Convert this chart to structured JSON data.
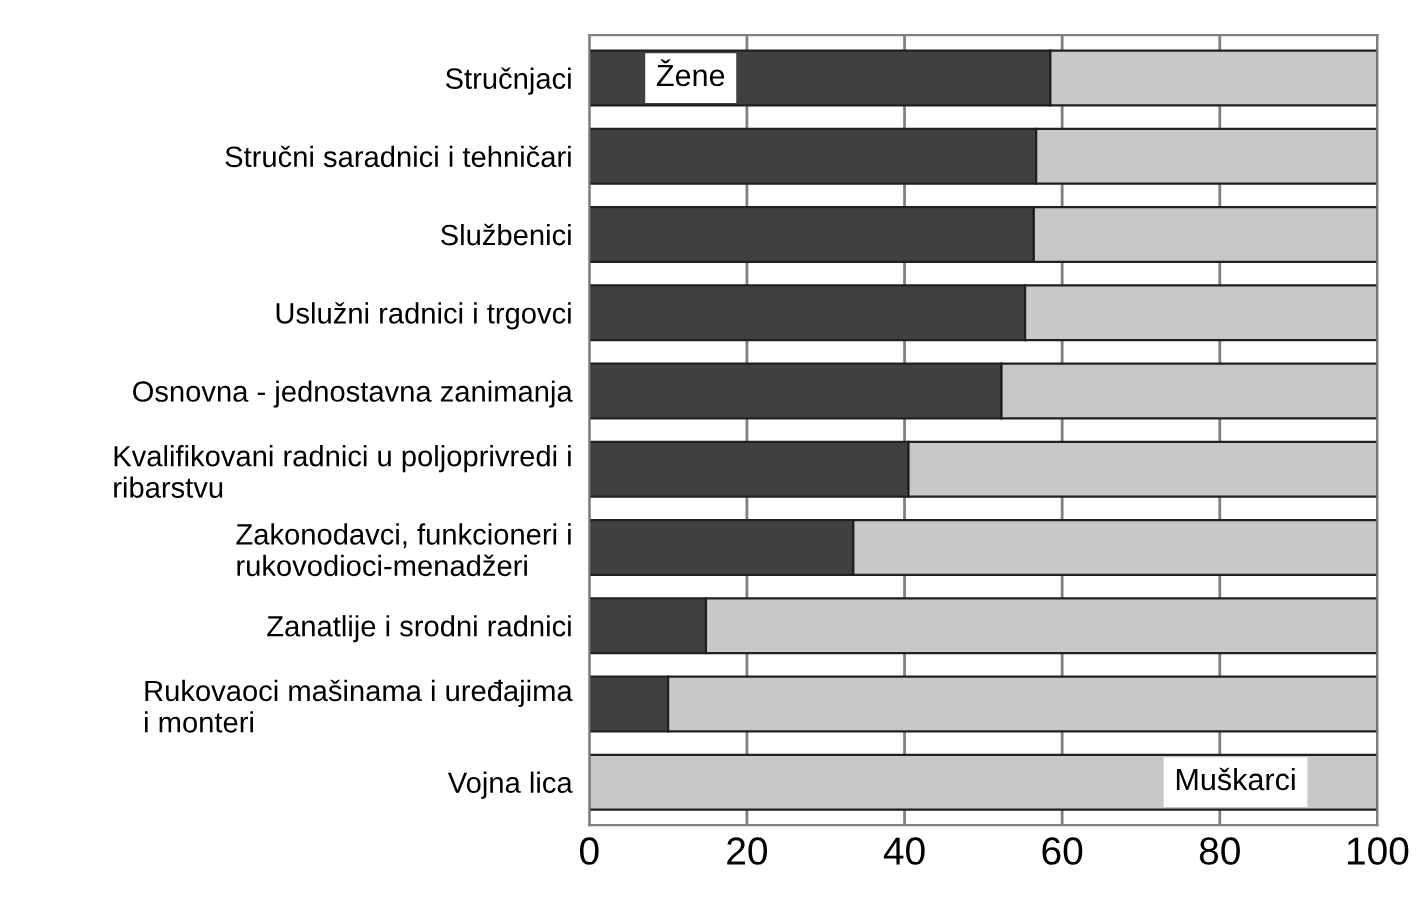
{
  "chart_data": {
    "type": "bar",
    "orientation": "horizontal",
    "stacked": true,
    "categories": [
      "Stručnjaci",
      "Stručni saradnici i tehničari",
      "Službenici",
      "Uslužni radnici i trgovci",
      "Osnovna - jednostavna zanimanja",
      "Kvalifikovani radnici u poljoprivredi i\nribarstvu",
      "Zakonodavci, funkcioneri i\nrukovodioci-menadžeri",
      "Zanatlije i srodni radnici",
      "Rukovaoci mašinama i uređajima\ni monteri",
      "Vojna lica"
    ],
    "series": [
      {
        "name": "Žene",
        "color": "#404040",
        "values": [
          58.5,
          56.7,
          56.4,
          55.3,
          52.3,
          40.5,
          33.5,
          14.8,
          10.0,
          0
        ]
      },
      {
        "name": "Muškarci",
        "color": "#c8c8c8",
        "values": [
          41.5,
          43.3,
          43.6,
          44.7,
          47.7,
          59.5,
          66.5,
          85.2,
          90.0,
          100
        ]
      }
    ],
    "xlim": [
      0,
      100
    ],
    "xticks": [
      0,
      20,
      40,
      60,
      80,
      100
    ],
    "grid": "x"
  }
}
